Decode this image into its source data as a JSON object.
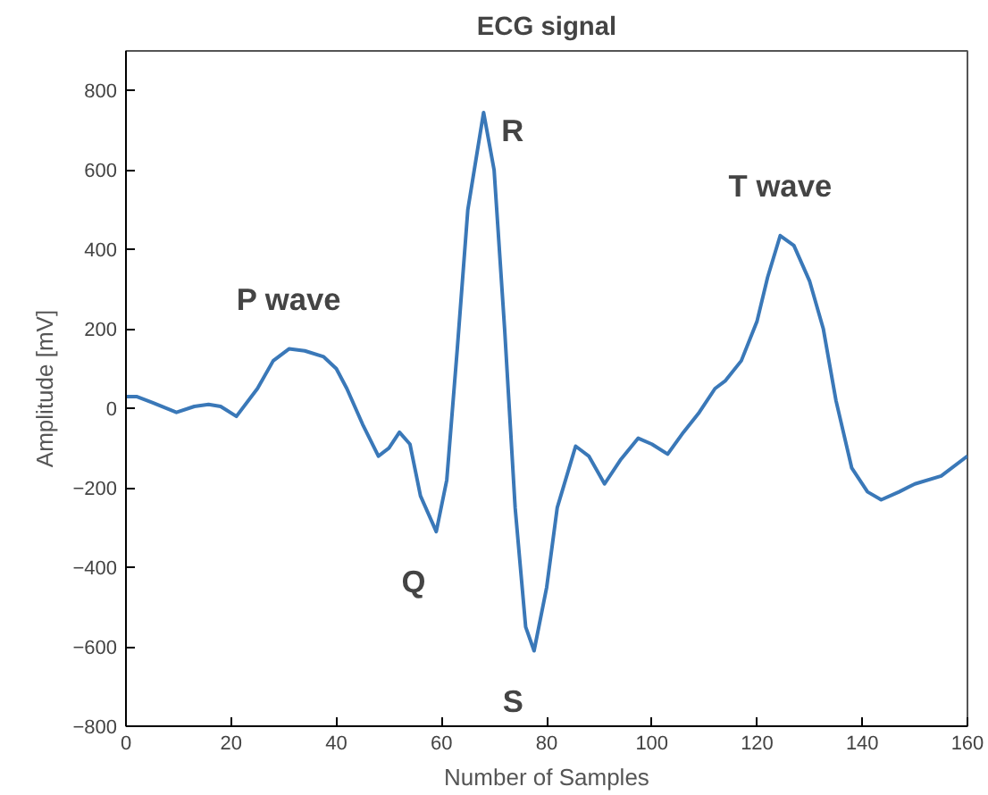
{
  "chart_data": {
    "type": "line",
    "title": "ECG signal",
    "xlabel": "Number of Samples",
    "ylabel": "Amplitude [mV]",
    "x": [
      0,
      2,
      5,
      9.6,
      13,
      15.7,
      18,
      21,
      25,
      28,
      31,
      34,
      37.6,
      40,
      42,
      45,
      48,
      50,
      52,
      54,
      56,
      59,
      61,
      63,
      65,
      68,
      70,
      72,
      74,
      76,
      77.6,
      80,
      82,
      85.5,
      88,
      91,
      94,
      97.4,
      100,
      103,
      106,
      109,
      112,
      114,
      117,
      120,
      122,
      124.4,
      127,
      130,
      132.6,
      135,
      138,
      141,
      143.6,
      147,
      150,
      155,
      160
    ],
    "series": [
      {
        "color": "#3a78b8",
        "values": [
          30,
          30,
          15,
          -10,
          5,
          10,
          5,
          -20,
          50,
          120,
          150,
          145,
          130,
          100,
          50,
          -40,
          -120,
          -100,
          -60,
          -90,
          -220,
          -310,
          -180,
          150,
          500,
          745,
          600,
          200,
          -250,
          -550,
          -610,
          -450,
          -250,
          -95,
          -120,
          -190,
          -130,
          -75,
          -90,
          -115,
          -60,
          -10,
          50,
          70,
          120,
          220,
          330,
          435,
          410,
          320,
          200,
          20,
          -150,
          -210,
          -230,
          -210,
          -190,
          -170,
          -120
        ]
      }
    ],
    "xlim": [
      0,
      160
    ],
    "ylim": [
      -800,
      900
    ],
    "xticks": [
      0,
      20,
      40,
      60,
      80,
      100,
      120,
      140,
      160
    ],
    "yticks": [
      -800,
      -600,
      -400,
      -200,
      0,
      200,
      400,
      600,
      800
    ],
    "grid": false,
    "line_style": "solid",
    "marker": "none",
    "annotations": [
      {
        "text": "P wave",
        "x": 31,
        "y": 150
      },
      {
        "text": "R",
        "x": 68,
        "y": 745
      },
      {
        "text": "Q",
        "x": 59,
        "y": -310
      },
      {
        "text": "S",
        "x": 77.6,
        "y": -610
      },
      {
        "text": "T wave",
        "x": 124.4,
        "y": 435
      }
    ]
  }
}
